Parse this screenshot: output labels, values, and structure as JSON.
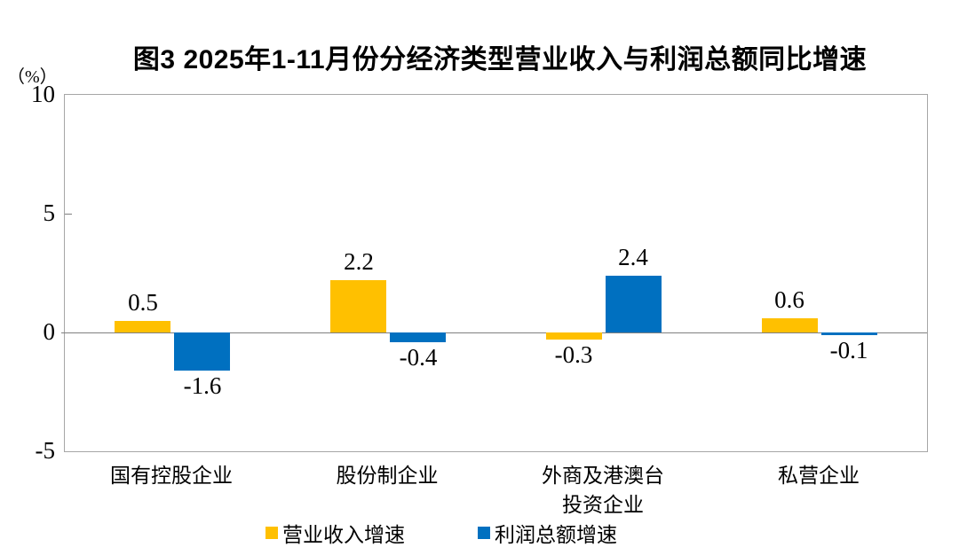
{
  "chart_data": {
    "type": "bar",
    "title": "图3  2025年1-11月份分经济类型营业收入与利润总额同比增速",
    "unit_label": "（%）",
    "categories": [
      "国有控股企业",
      "股份制企业",
      "外商及港澳台\n投资企业",
      "私营企业"
    ],
    "series": [
      {
        "name": "营业收入增速",
        "color": "#FFC000",
        "values": [
          0.5,
          2.2,
          -0.3,
          0.6
        ]
      },
      {
        "name": "利润总额增速",
        "color": "#0070C0",
        "values": [
          -1.6,
          -0.4,
          2.4,
          -0.1
        ]
      }
    ],
    "value_label_format": "one-decimal",
    "ylim": [
      -5,
      10
    ],
    "yticks": [
      10,
      5,
      0,
      -5
    ],
    "grid": false,
    "legend_position": "bottom",
    "colors": {
      "frame": "#a6a6a6",
      "zero_line": "#808080",
      "text": "#000000",
      "background": "#ffffff"
    }
  }
}
